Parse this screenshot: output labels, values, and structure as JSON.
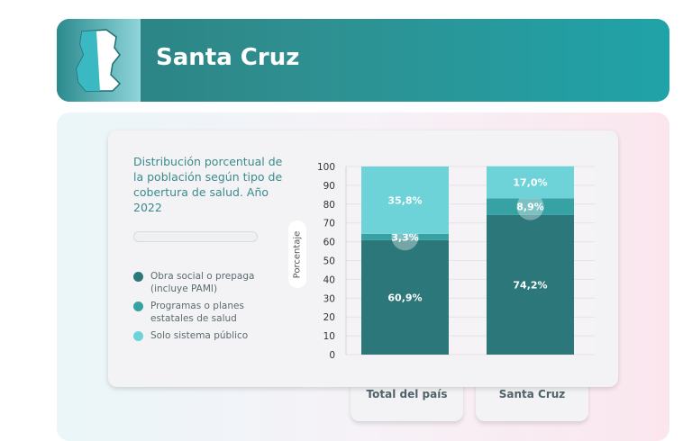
{
  "header": {
    "title": "Santa Cruz"
  },
  "chart_data": {
    "type": "bar",
    "stacked": true,
    "title": "Distribución porcentual de la población según tipo de cobertura de salud. Año 2022",
    "ylabel": "Porcentaje",
    "ylim": [
      0,
      100
    ],
    "yticks": [
      "0",
      "10",
      "20",
      "30",
      "40",
      "50",
      "60",
      "70",
      "80",
      "90",
      "100"
    ],
    "categories": [
      "Total del país",
      "Santa Cruz"
    ],
    "series": [
      {
        "name": "Obra social o prepaga (incluye PAMI)",
        "values": [
          60.9,
          74.2
        ],
        "labels": [
          "60,9%",
          "74,2%"
        ],
        "color": "#2c7779"
      },
      {
        "name": "Programas o planes estatales de salud",
        "values": [
          3.3,
          8.9
        ],
        "labels": [
          "3,3%",
          "8,9%"
        ],
        "color": "#37a2a4"
      },
      {
        "name": "Solo sistema público",
        "values": [
          35.8,
          17.0
        ],
        "labels": [
          "35,8%",
          "17,0%"
        ],
        "color": "#6ed3d8"
      }
    ],
    "legend": "left"
  }
}
